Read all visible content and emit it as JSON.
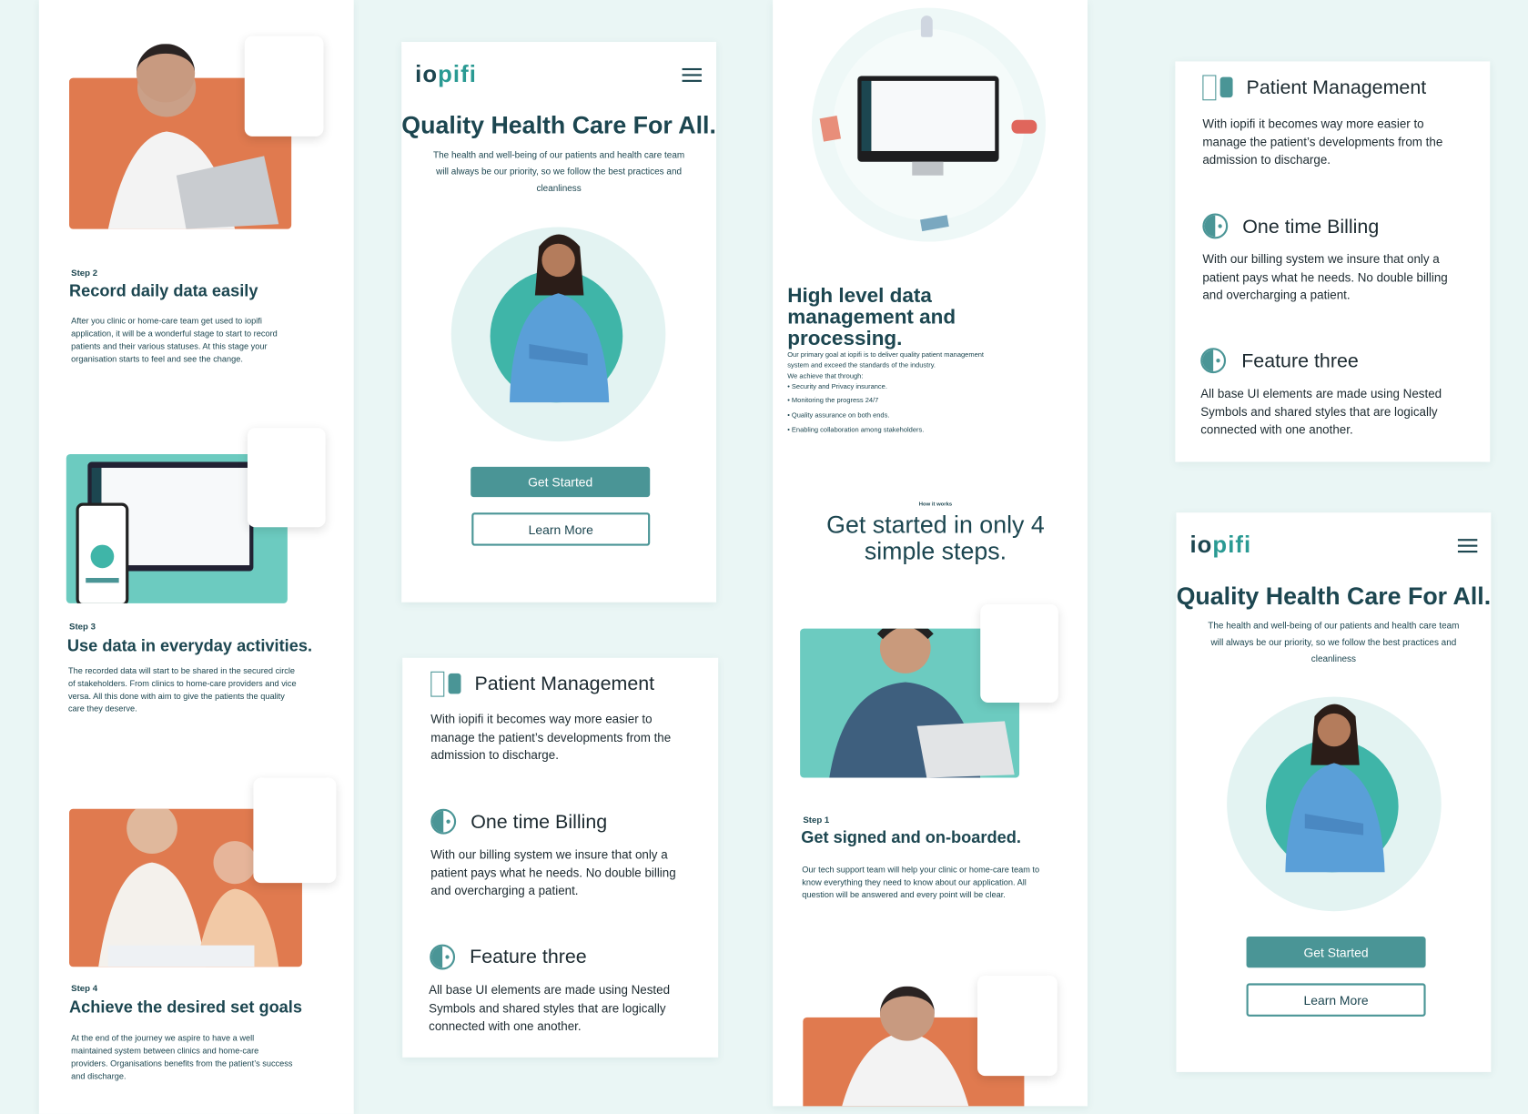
{
  "brand": {
    "logo_a": "io",
    "logo_b": "pifi",
    "accent": "#4a9596",
    "dark": "#1c4650",
    "background": "#eaf6f5"
  },
  "hero": {
    "title": "Quality Health Care For All.",
    "body": "The health and well-being of our patients and health care team will always be our priority, so we follow the best practices and cleanliness",
    "get_started": "Get Started",
    "learn_more": "Learn More"
  },
  "features": [
    {
      "icon": "patient-management-icon",
      "title": "Patient Management",
      "body": "With iopifi it becomes way more easier to manage the patient’s developments from the admission to discharge."
    },
    {
      "icon": "half-circle-icon",
      "title": "One time Billing",
      "body": "With our billing system we insure that only a patient pays what he needs. No double billing and overcharging a patient."
    },
    {
      "icon": "half-circle-icon",
      "title": "Feature three",
      "body": "All base UI elements are made using Nested Symbols and shared styles that are logically connected with one another."
    }
  ],
  "data_section": {
    "title": "High level data management and processing.",
    "intro": "Our primary goal at iopifi is to deliver quality patient management system and exceed the standards of the industry.",
    "intro2": "We achieve that through:",
    "bullets": [
      "Security and Privacy insurance.",
      "Monitoring the progress 24/7",
      "Quality assurance on both ends.",
      "Enabling collaboration among stakeholders."
    ]
  },
  "how": {
    "eyebrow": "How it works",
    "title": "Get started in only 4 simple steps."
  },
  "steps": [
    {
      "label": "Step 1",
      "title": "Get signed and on-boarded.",
      "body": "Our tech support team will help your clinic or home-care team to know everything they need to know about our application. All question will be answered and every point will be clear."
    },
    {
      "label": "Step 2",
      "title": "Record daily data easily",
      "body": "After you clinic or home-care team get used to iopifi application, it will be a wonderful stage to start to record patients and their various statuses. At this stage your organisation starts to feel and see the change."
    },
    {
      "label": "Step 3",
      "title": "Use data in everyday activities.",
      "body": "The recorded data will start to be shared in the secured circle of stakeholders. From clinics to home-care providers and vice versa. All this done with aim to give the patients the quality care they deserve."
    },
    {
      "label": "Step 4",
      "title": "Achieve the desired set goals",
      "body": "At the end of the journey we aspire to have a well maintained system between clinics and home-care providers. Organisations benefits from the patient’s success and discharge."
    }
  ]
}
